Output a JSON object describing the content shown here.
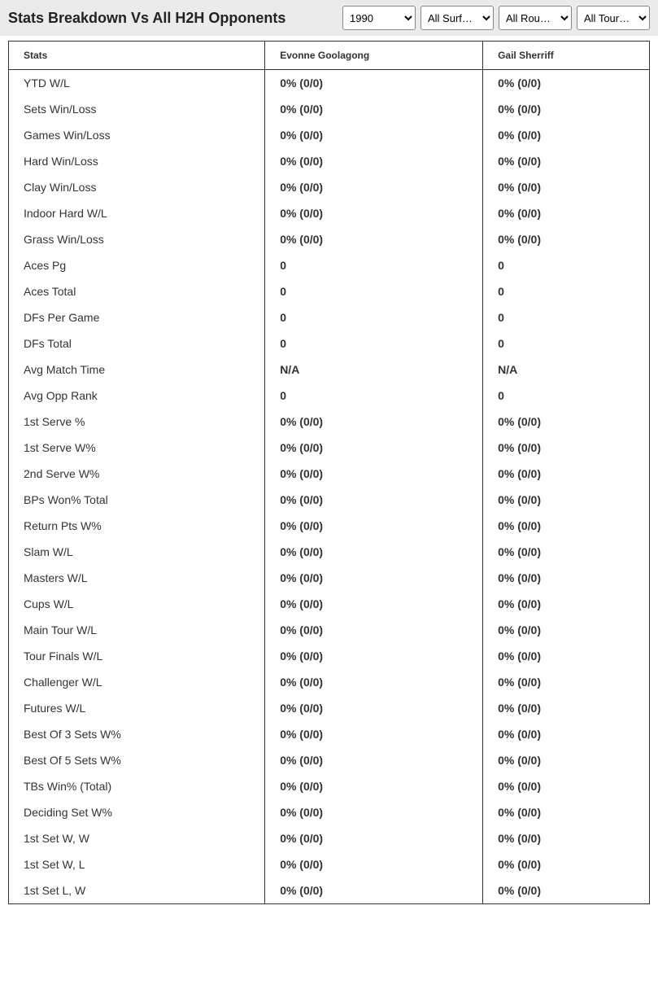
{
  "header": {
    "title": "Stats Breakdown Vs All H2H Opponents"
  },
  "filters": {
    "year": {
      "selected": "1990",
      "options": [
        "1990"
      ]
    },
    "surface": {
      "selected": "All Surf…",
      "options": [
        "All Surf…"
      ]
    },
    "round": {
      "selected": "All Rou…",
      "options": [
        "All Rou…"
      ]
    },
    "tournament": {
      "selected": "All Tour…",
      "options": [
        "All Tour…"
      ]
    }
  },
  "table": {
    "columns": [
      "Stats",
      "Evonne Goolagong",
      "Gail Sherriff"
    ],
    "rows": [
      [
        "YTD W/L",
        "0% (0/0)",
        "0% (0/0)"
      ],
      [
        "Sets Win/Loss",
        "0% (0/0)",
        "0% (0/0)"
      ],
      [
        "Games Win/Loss",
        "0% (0/0)",
        "0% (0/0)"
      ],
      [
        "Hard Win/Loss",
        "0% (0/0)",
        "0% (0/0)"
      ],
      [
        "Clay Win/Loss",
        "0% (0/0)",
        "0% (0/0)"
      ],
      [
        "Indoor Hard W/L",
        "0% (0/0)",
        "0% (0/0)"
      ],
      [
        "Grass Win/Loss",
        "0% (0/0)",
        "0% (0/0)"
      ],
      [
        "Aces Pg",
        "0",
        "0"
      ],
      [
        "Aces Total",
        "0",
        "0"
      ],
      [
        "DFs Per Game",
        "0",
        "0"
      ],
      [
        "DFs Total",
        "0",
        "0"
      ],
      [
        "Avg Match Time",
        "N/A",
        "N/A"
      ],
      [
        "Avg Opp Rank",
        "0",
        "0"
      ],
      [
        "1st Serve %",
        "0% (0/0)",
        "0% (0/0)"
      ],
      [
        "1st Serve W%",
        "0% (0/0)",
        "0% (0/0)"
      ],
      [
        "2nd Serve W%",
        "0% (0/0)",
        "0% (0/0)"
      ],
      [
        "BPs Won% Total",
        "0% (0/0)",
        "0% (0/0)"
      ],
      [
        "Return Pts W%",
        "0% (0/0)",
        "0% (0/0)"
      ],
      [
        "Slam W/L",
        "0% (0/0)",
        "0% (0/0)"
      ],
      [
        "Masters W/L",
        "0% (0/0)",
        "0% (0/0)"
      ],
      [
        "Cups W/L",
        "0% (0/0)",
        "0% (0/0)"
      ],
      [
        "Main Tour W/L",
        "0% (0/0)",
        "0% (0/0)"
      ],
      [
        "Tour Finals W/L",
        "0% (0/0)",
        "0% (0/0)"
      ],
      [
        "Challenger W/L",
        "0% (0/0)",
        "0% (0/0)"
      ],
      [
        "Futures W/L",
        "0% (0/0)",
        "0% (0/0)"
      ],
      [
        "Best Of 3 Sets W%",
        "0% (0/0)",
        "0% (0/0)"
      ],
      [
        "Best Of 5 Sets W%",
        "0% (0/0)",
        "0% (0/0)"
      ],
      [
        "TBs Win% (Total)",
        "0% (0/0)",
        "0% (0/0)"
      ],
      [
        "Deciding Set W%",
        "0% (0/0)",
        "0% (0/0)"
      ],
      [
        "1st Set W, W",
        "0% (0/0)",
        "0% (0/0)"
      ],
      [
        "1st Set W, L",
        "0% (0/0)",
        "0% (0/0)"
      ],
      [
        "1st Set L, W",
        "0% (0/0)",
        "0% (0/0)"
      ]
    ]
  }
}
